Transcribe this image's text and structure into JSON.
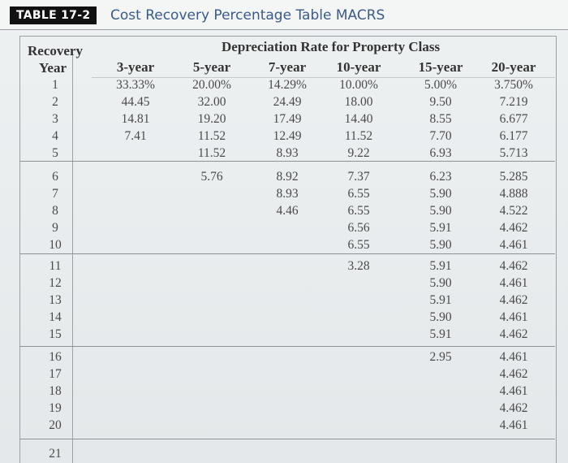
{
  "title": {
    "badge": "TABLE 17-2",
    "text": "Cost Recovery Percentage Table MACRS"
  },
  "header": {
    "recovery_line1": "Recovery",
    "recovery_line2": "Year",
    "group_label": "Depreciation Rate for Property Class",
    "columns": [
      "3-year",
      "5-year",
      "7-year",
      "10-year",
      "15-year",
      "20-year"
    ]
  },
  "rows": [
    {
      "year": "1",
      "values": [
        "33.33%",
        "20.00%",
        "14.29%",
        "10.00%",
        "5.00%",
        "3.750%"
      ]
    },
    {
      "year": "2",
      "values": [
        "44.45",
        "32.00",
        "24.49",
        "18.00",
        "9.50",
        "7.219"
      ]
    },
    {
      "year": "3",
      "values": [
        "14.81",
        "19.20",
        "17.49",
        "14.40",
        "8.55",
        "6.677"
      ]
    },
    {
      "year": "4",
      "values": [
        "7.41",
        "11.52",
        "12.49",
        "11.52",
        "7.70",
        "6.177"
      ]
    },
    {
      "year": "5",
      "values": [
        "",
        "11.52",
        "8.93",
        "9.22",
        "6.93",
        "5.713"
      ]
    },
    {
      "year": "6",
      "values": [
        "",
        "5.76",
        "8.92",
        "7.37",
        "6.23",
        "5.285"
      ]
    },
    {
      "year": "7",
      "values": [
        "",
        "",
        "8.93",
        "6.55",
        "5.90",
        "4.888"
      ]
    },
    {
      "year": "8",
      "values": [
        "",
        "",
        "4.46",
        "6.55",
        "5.90",
        "4.522"
      ]
    },
    {
      "year": "9",
      "values": [
        "",
        "",
        "",
        "6.56",
        "5.91",
        "4.462"
      ]
    },
    {
      "year": "10",
      "values": [
        "",
        "",
        "",
        "6.55",
        "5.90",
        "4.461"
      ]
    },
    {
      "year": "11",
      "values": [
        "",
        "",
        "",
        "3.28",
        "5.91",
        "4.462"
      ]
    },
    {
      "year": "12",
      "values": [
        "",
        "",
        "",
        "",
        "5.90",
        "4.461"
      ]
    },
    {
      "year": "13",
      "values": [
        "",
        "",
        "",
        "",
        "5.91",
        "4.462"
      ]
    },
    {
      "year": "14",
      "values": [
        "",
        "",
        "",
        "",
        "5.90",
        "4.461"
      ]
    },
    {
      "year": "15",
      "values": [
        "",
        "",
        "",
        "",
        "5.91",
        "4.462"
      ]
    },
    {
      "year": "16",
      "values": [
        "",
        "",
        "",
        "",
        "2.95",
        "4.461"
      ]
    },
    {
      "year": "17",
      "values": [
        "",
        "",
        "",
        "",
        "",
        "4.462"
      ]
    },
    {
      "year": "18",
      "values": [
        "",
        "",
        "",
        "",
        "",
        "4.461"
      ]
    },
    {
      "year": "19",
      "values": [
        "",
        "",
        "",
        "",
        "",
        "4.462"
      ]
    },
    {
      "year": "20",
      "values": [
        "",
        "",
        "",
        "",
        "",
        "4.461"
      ]
    },
    {
      "year": "21",
      "values": [
        "",
        "",
        "",
        "",
        "",
        ""
      ]
    }
  ]
}
